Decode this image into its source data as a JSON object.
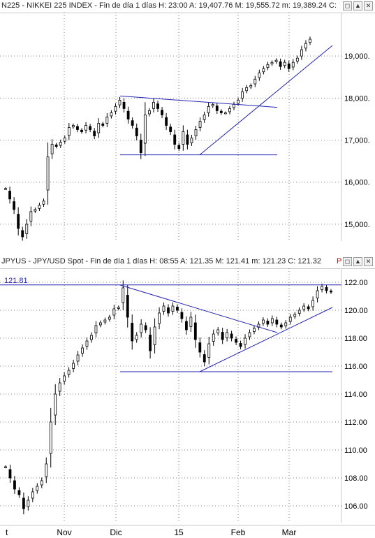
{
  "colors": {
    "grid": "#7f7f7f",
    "trend": "#2323b4",
    "candle": "#000000",
    "label": "#2323b4",
    "flag": "#d00000"
  },
  "top_pane": {
    "header": "N225 - NIKKEI 225 INDEX - Fin de día 1 días  H: 23:00  A: 19,407.76  M: 19,555.72  m: 19,389.24  C:",
    "buttons": [
      "◻",
      "▲",
      "✕"
    ]
  },
  "bottom_pane": {
    "header": "JPYUS - JPY/USD Spot - Fin de día 1 días  H: 08:55  A: 121.35  M: 121.41  m: 121.23  C: 121.32",
    "flag": "P",
    "buttons": [
      "◻",
      "▲",
      "✕"
    ],
    "level_label": "121.81"
  },
  "x_axis": {
    "labels": [
      "t",
      "Nov",
      "Dic",
      "15",
      "Feb",
      "Mar"
    ]
  },
  "chart_data": [
    {
      "type": "candlestick",
      "title": "NIKKEI 225 INDEX",
      "ylim": [
        14600,
        19900
      ],
      "yticks": [
        15000,
        16000,
        17000,
        18000,
        19000
      ],
      "ytick_labels": [
        "15,000.",
        "16,000.",
        "17,000.",
        "18,000.",
        "19,000."
      ],
      "series": [
        {
          "values": [
            15850,
            15600,
            15350,
            14900,
            14700,
            15000,
            15300,
            15350,
            15450,
            15550,
            16600,
            16900,
            16850,
            16950,
            17050,
            17300,
            17350,
            17250,
            17200,
            17350,
            17250,
            17100,
            17400,
            17350,
            17550,
            17650,
            17800,
            17950,
            17750,
            17500,
            17350,
            17100,
            16700,
            17600,
            17700,
            17900,
            17750,
            17600,
            17350,
            17200,
            16900,
            16800,
            17200,
            16900,
            17050,
            17250,
            17450,
            17600,
            17800,
            17850,
            17700,
            17650,
            17650,
            17750,
            17850,
            17950,
            18150,
            18250,
            18300,
            18450,
            18600,
            18700,
            18800,
            18850,
            18900,
            18750,
            18850,
            18700,
            18850,
            18950,
            19150,
            19300,
            19400
          ]
        }
      ],
      "trendlines": [
        {
          "from": [
            "Dic",
            18050
          ],
          "to": [
            "Feb",
            17780
          ]
        },
        {
          "from": [
            "Dic",
            16650
          ],
          "to": [
            "Feb",
            16650
          ]
        },
        {
          "from": [
            "15",
            16650
          ],
          "to": [
            "Mar",
            19250
          ]
        }
      ]
    },
    {
      "type": "candlestick",
      "title": "JPY/USD Spot",
      "ylim": [
        104.8,
        122.7
      ],
      "yticks": [
        106,
        108,
        110,
        112,
        114,
        116,
        118,
        120,
        122
      ],
      "ytick_labels": [
        "106.00",
        "108.00",
        "110.00",
        "112.00",
        "114.00",
        "116.00",
        "118.00",
        "120.00",
        "122.00"
      ],
      "series": [
        {
          "values": [
            108.8,
            108.0,
            107.2,
            106.8,
            105.8,
            106.4,
            107.0,
            107.4,
            107.8,
            109.0,
            112.0,
            114.0,
            114.8,
            115.3,
            115.7,
            116.2,
            116.8,
            117.3,
            117.8,
            118.2,
            118.9,
            119.1,
            119.3,
            119.5,
            120.1,
            120.2,
            121.6,
            119.5,
            117.8,
            118.2,
            119.0,
            118.6,
            117.1,
            118.8,
            119.8,
            120.3,
            119.8,
            120.3,
            120.0,
            119.4,
            118.6,
            119.5,
            117.9,
            117.0,
            116.3,
            117.6,
            118.3,
            118.6,
            117.9,
            118.4,
            118.0,
            117.7,
            117.4,
            118.0,
            118.4,
            118.7,
            119.0,
            119.3,
            119.0,
            119.4,
            119.0,
            118.8,
            119.1,
            119.5,
            119.7,
            120.0,
            120.3,
            120.1,
            120.7,
            121.4,
            121.7,
            121.4,
            121.3
          ]
        }
      ],
      "reference_level": 121.81,
      "trendlines": [
        {
          "from": [
            "Dic",
            121.8
          ],
          "to": [
            "Feb",
            118.4
          ]
        },
        {
          "from": [
            "Dic",
            115.6
          ],
          "to": [
            "Mar",
            115.6
          ]
        },
        {
          "from": [
            "15",
            115.6
          ],
          "to": [
            "Mar",
            120.2
          ]
        }
      ]
    }
  ]
}
